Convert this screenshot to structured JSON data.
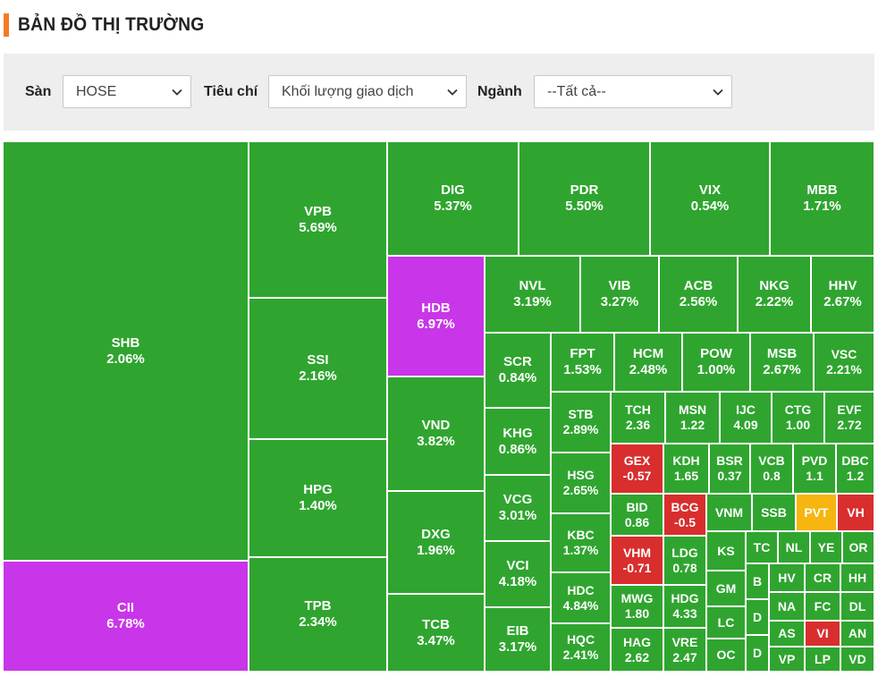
{
  "header": {
    "title": "BẢN ĐỒ THỊ TRƯỜNG"
  },
  "colors": {
    "up": "#2fa52f",
    "down": "#d82e2e",
    "ceiling": "#c935e8",
    "reference": "#f6b50f",
    "accent": "#f47c20"
  },
  "filters": {
    "exchange": {
      "label": "Sàn",
      "value": "HOSE"
    },
    "criteria": {
      "label": "Tiêu chí",
      "value": "Khối lượng giao dịch"
    },
    "sector": {
      "label": "Ngành",
      "value": "--Tất cả--"
    }
  },
  "tiles": [
    {
      "symbol": "SHB",
      "change": "2.06%",
      "status": "up"
    },
    {
      "symbol": "CII",
      "change": "6.78%",
      "status": "ceiling"
    },
    {
      "symbol": "VPB",
      "change": "5.69%",
      "status": "up"
    },
    {
      "symbol": "SSI",
      "change": "2.16%",
      "status": "up"
    },
    {
      "symbol": "HPG",
      "change": "1.40%",
      "status": "up"
    },
    {
      "symbol": "TPB",
      "change": "2.34%",
      "status": "up"
    },
    {
      "symbol": "DIG",
      "change": "5.37%",
      "status": "up"
    },
    {
      "symbol": "PDR",
      "change": "5.50%",
      "status": "up"
    },
    {
      "symbol": "VIX",
      "change": "0.54%",
      "status": "up"
    },
    {
      "symbol": "MBB",
      "change": "1.71%",
      "status": "up"
    },
    {
      "symbol": "HDB",
      "change": "6.97%",
      "status": "ceiling"
    },
    {
      "symbol": "VND",
      "change": "3.82%",
      "status": "up"
    },
    {
      "symbol": "DXG",
      "change": "1.96%",
      "status": "up"
    },
    {
      "symbol": "TCB",
      "change": "3.47%",
      "status": "up"
    },
    {
      "symbol": "NVL",
      "change": "3.19%",
      "status": "up"
    },
    {
      "symbol": "VIB",
      "change": "3.27%",
      "status": "up"
    },
    {
      "symbol": "ACB",
      "change": "2.56%",
      "status": "up"
    },
    {
      "symbol": "NKG",
      "change": "2.22%",
      "status": "up"
    },
    {
      "symbol": "HHV",
      "change": "2.67%",
      "status": "up"
    },
    {
      "symbol": "SCR",
      "change": "0.84%",
      "status": "up"
    },
    {
      "symbol": "KHG",
      "change": "0.86%",
      "status": "up"
    },
    {
      "symbol": "VCG",
      "change": "3.01%",
      "status": "up"
    },
    {
      "symbol": "VCI",
      "change": "4.18%",
      "status": "up"
    },
    {
      "symbol": "EIB",
      "change": "3.17%",
      "status": "up"
    },
    {
      "symbol": "FPT",
      "change": "1.53%",
      "status": "up"
    },
    {
      "symbol": "HCM",
      "change": "2.48%",
      "status": "up"
    },
    {
      "symbol": "POW",
      "change": "1.00%",
      "status": "up"
    },
    {
      "symbol": "MSB",
      "change": "2.67%",
      "status": "up"
    },
    {
      "symbol": "VSC",
      "change": "2.21%",
      "status": "up"
    },
    {
      "symbol": "STB",
      "change": "2.89%",
      "status": "up"
    },
    {
      "symbol": "HSG",
      "change": "2.65%",
      "status": "up"
    },
    {
      "symbol": "KBC",
      "change": "1.37%",
      "status": "up"
    },
    {
      "symbol": "HDC",
      "change": "4.84%",
      "status": "up"
    },
    {
      "symbol": "HQC",
      "change": "2.41%",
      "status": "up"
    },
    {
      "symbol": "TCH",
      "change": "2.36",
      "status": "up"
    },
    {
      "symbol": "MSN",
      "change": "1.22",
      "status": "up"
    },
    {
      "symbol": "IJC",
      "change": "4.09",
      "status": "up"
    },
    {
      "symbol": "CTG",
      "change": "1.00",
      "status": "up"
    },
    {
      "symbol": "EVF",
      "change": "2.72",
      "status": "up"
    },
    {
      "symbol": "GEX",
      "change": "-0.57",
      "status": "down"
    },
    {
      "symbol": "KDH",
      "change": "1.65",
      "status": "up"
    },
    {
      "symbol": "BSR",
      "change": "0.37",
      "status": "up"
    },
    {
      "symbol": "VCB",
      "change": "0.8",
      "status": "up"
    },
    {
      "symbol": "PVD",
      "change": "1.1",
      "status": "up"
    },
    {
      "symbol": "DBC",
      "change": "1.2",
      "status": "up"
    },
    {
      "symbol": "BID",
      "change": "0.86",
      "status": "up"
    },
    {
      "symbol": "BCG",
      "change": "-0.5",
      "status": "down"
    },
    {
      "symbol": "VNM",
      "change": "",
      "status": "up"
    },
    {
      "symbol": "SSB",
      "change": "",
      "status": "up"
    },
    {
      "symbol": "PVT",
      "change": "",
      "status": "reference"
    },
    {
      "symbol": "VH",
      "change": "",
      "status": "down"
    },
    {
      "symbol": "VHM",
      "change": "-0.71",
      "status": "down"
    },
    {
      "symbol": "LDG",
      "change": "0.78",
      "status": "up"
    },
    {
      "symbol": "KS",
      "change": "",
      "status": "up"
    },
    {
      "symbol": "TC",
      "change": "",
      "status": "up"
    },
    {
      "symbol": "NL",
      "change": "",
      "status": "up"
    },
    {
      "symbol": "YE",
      "change": "",
      "status": "up"
    },
    {
      "symbol": "OR",
      "change": "",
      "status": "up"
    },
    {
      "symbol": "MWG",
      "change": "1.80",
      "status": "up"
    },
    {
      "symbol": "HDG",
      "change": "4.33",
      "status": "up"
    },
    {
      "symbol": "GM",
      "change": "",
      "status": "up"
    },
    {
      "symbol": "B",
      "change": "",
      "status": "up"
    },
    {
      "symbol": "HV",
      "change": "",
      "status": "up"
    },
    {
      "symbol": "CR",
      "change": "",
      "status": "up"
    },
    {
      "symbol": "HH",
      "change": "",
      "status": "up"
    },
    {
      "symbol": "LC",
      "change": "",
      "status": "up"
    },
    {
      "symbol": "D",
      "change": "",
      "status": "up"
    },
    {
      "symbol": "NA",
      "change": "",
      "status": "up"
    },
    {
      "symbol": "FC",
      "change": "",
      "status": "up"
    },
    {
      "symbol": "DL",
      "change": "",
      "status": "up"
    },
    {
      "symbol": "HAG",
      "change": "2.62",
      "status": "up"
    },
    {
      "symbol": "VRE",
      "change": "2.47",
      "status": "up"
    },
    {
      "symbol": "OC",
      "change": "",
      "status": "up"
    },
    {
      "symbol": "D",
      "change": "",
      "status": "up"
    },
    {
      "symbol": "AS",
      "change": "",
      "status": "up"
    },
    {
      "symbol": "VI",
      "change": "",
      "status": "down"
    },
    {
      "symbol": "AN",
      "change": "",
      "status": "up"
    },
    {
      "symbol": "VP",
      "change": "",
      "status": "up"
    },
    {
      "symbol": "LP",
      "change": "",
      "status": "up"
    },
    {
      "symbol": "VD",
      "change": "",
      "status": "up"
    }
  ]
}
